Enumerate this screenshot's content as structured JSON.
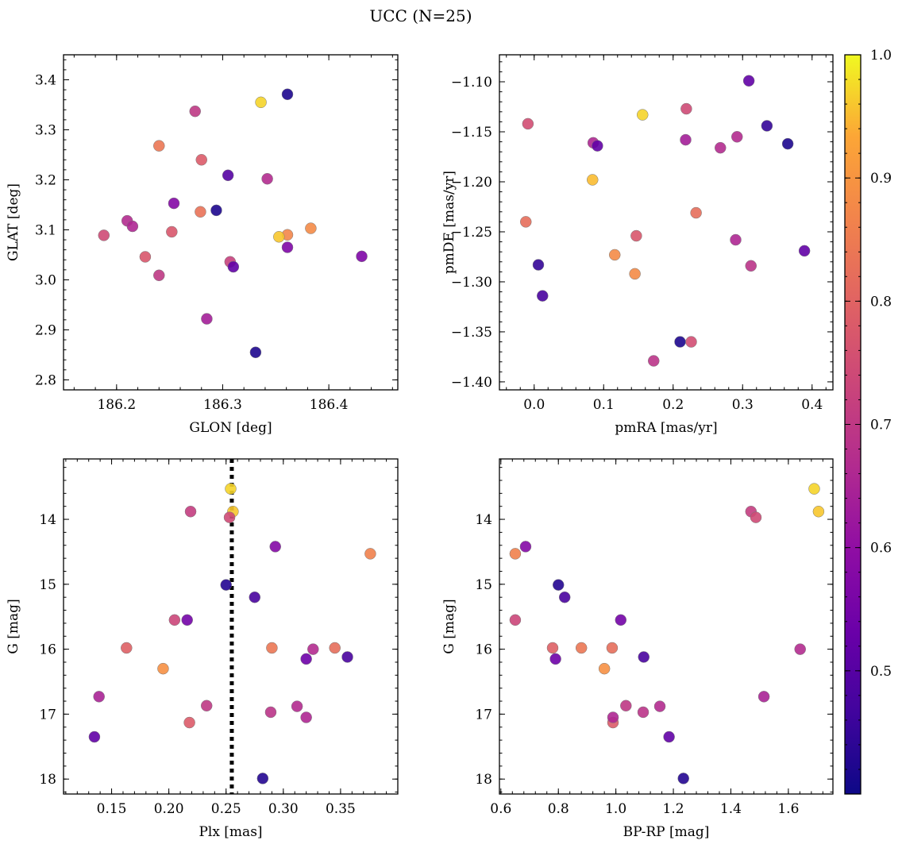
{
  "figure_title": "UCC (N=25)",
  "colorbar": {
    "range": [
      0.4,
      1.0
    ],
    "ticks": [
      0.5,
      0.6,
      0.7,
      0.8,
      0.9,
      1.0
    ],
    "tick_labels": [
      "0.5",
      "0.6",
      "0.7",
      "0.8",
      "0.9",
      "1.0"
    ],
    "colormap": "plasma"
  },
  "chart_data": [
    {
      "type": "scatter",
      "xlabel": "GLON [deg]",
      "ylabel": "GLAT [deg]",
      "xlim": [
        186.15,
        186.465
      ],
      "ylim": [
        2.78,
        3.45
      ],
      "xticks": [
        186.2,
        186.3,
        186.4
      ],
      "xtick_labels": [
        "186.2",
        "186.3",
        "186.4"
      ],
      "yticks": [
        2.8,
        2.9,
        3.0,
        3.1,
        3.2,
        3.3,
        3.4
      ],
      "ytick_labels": [
        "2.8",
        "2.9",
        "3.0",
        "3.1",
        "3.2",
        "3.3",
        "3.4"
      ],
      "points": [
        {
          "x": 186.336,
          "y": 3.355,
          "c": 0.97
        },
        {
          "x": 186.361,
          "y": 3.371,
          "c": 0.42
        },
        {
          "x": 186.274,
          "y": 3.337,
          "c": 0.7
        },
        {
          "x": 186.24,
          "y": 3.268,
          "c": 0.84
        },
        {
          "x": 186.28,
          "y": 3.24,
          "c": 0.78
        },
        {
          "x": 186.305,
          "y": 3.209,
          "c": 0.5
        },
        {
          "x": 186.342,
          "y": 3.202,
          "c": 0.67
        },
        {
          "x": 186.254,
          "y": 3.153,
          "c": 0.58
        },
        {
          "x": 186.294,
          "y": 3.139,
          "c": 0.42
        },
        {
          "x": 186.279,
          "y": 3.136,
          "c": 0.83
        },
        {
          "x": 186.21,
          "y": 3.118,
          "c": 0.67
        },
        {
          "x": 186.215,
          "y": 3.107,
          "c": 0.66
        },
        {
          "x": 186.383,
          "y": 3.103,
          "c": 0.88
        },
        {
          "x": 186.252,
          "y": 3.096,
          "c": 0.77
        },
        {
          "x": 186.361,
          "y": 3.09,
          "c": 0.87
        },
        {
          "x": 186.188,
          "y": 3.089,
          "c": 0.74
        },
        {
          "x": 186.353,
          "y": 3.086,
          "c": 0.96
        },
        {
          "x": 186.361,
          "y": 3.065,
          "c": 0.57
        },
        {
          "x": 186.431,
          "y": 3.047,
          "c": 0.57
        },
        {
          "x": 186.227,
          "y": 3.046,
          "c": 0.77
        },
        {
          "x": 186.307,
          "y": 3.036,
          "c": 0.72
        },
        {
          "x": 186.31,
          "y": 3.026,
          "c": 0.52
        },
        {
          "x": 186.24,
          "y": 3.009,
          "c": 0.7
        },
        {
          "x": 186.285,
          "y": 2.922,
          "c": 0.64
        },
        {
          "x": 186.331,
          "y": 2.855,
          "c": 0.42
        }
      ]
    },
    {
      "type": "scatter",
      "xlabel": "pmRA [mas/yr]",
      "ylabel": "pmDE [mas/yr]",
      "xlim": [
        -0.05,
        0.43
      ],
      "ylim": [
        -1.408,
        -1.073
      ],
      "xticks": [
        0.0,
        0.1,
        0.2,
        0.3,
        0.4
      ],
      "xtick_labels": [
        "0.0",
        "0.1",
        "0.2",
        "0.3",
        "0.4"
      ],
      "yticks": [
        -1.4,
        -1.35,
        -1.3,
        -1.25,
        -1.2,
        -1.15,
        -1.1
      ],
      "ytick_labels": [
        "−1.40",
        "−1.35",
        "−1.30",
        "−1.25",
        "−1.20",
        "−1.15",
        "−1.10"
      ],
      "points": [
        {
          "x": 0.309,
          "y": -1.099,
          "c": 0.52
        },
        {
          "x": 0.219,
          "y": -1.127,
          "c": 0.74
        },
        {
          "x": 0.156,
          "y": -1.133,
          "c": 0.97
        },
        {
          "x": -0.009,
          "y": -1.142,
          "c": 0.75
        },
        {
          "x": 0.335,
          "y": -1.144,
          "c": 0.45
        },
        {
          "x": 0.292,
          "y": -1.155,
          "c": 0.67
        },
        {
          "x": 0.218,
          "y": -1.158,
          "c": 0.64
        },
        {
          "x": 0.085,
          "y": -1.161,
          "c": 0.66
        },
        {
          "x": 0.365,
          "y": -1.162,
          "c": 0.42
        },
        {
          "x": 0.091,
          "y": -1.164,
          "c": 0.52
        },
        {
          "x": 0.268,
          "y": -1.166,
          "c": 0.67
        },
        {
          "x": 0.084,
          "y": -1.198,
          "c": 0.95
        },
        {
          "x": 0.233,
          "y": -1.231,
          "c": 0.82
        },
        {
          "x": -0.012,
          "y": -1.24,
          "c": 0.82
        },
        {
          "x": 0.147,
          "y": -1.254,
          "c": 0.77
        },
        {
          "x": 0.29,
          "y": -1.258,
          "c": 0.66
        },
        {
          "x": 0.389,
          "y": -1.269,
          "c": 0.52
        },
        {
          "x": 0.116,
          "y": -1.273,
          "c": 0.88
        },
        {
          "x": 0.006,
          "y": -1.283,
          "c": 0.45
        },
        {
          "x": 0.312,
          "y": -1.284,
          "c": 0.69
        },
        {
          "x": 0.145,
          "y": -1.292,
          "c": 0.88
        },
        {
          "x": 0.012,
          "y": -1.314,
          "c": 0.48
        },
        {
          "x": 0.21,
          "y": -1.36,
          "c": 0.42
        },
        {
          "x": 0.226,
          "y": -1.36,
          "c": 0.75
        },
        {
          "x": 0.172,
          "y": -1.379,
          "c": 0.69
        }
      ]
    },
    {
      "type": "scatter",
      "xlabel": "Plx [mas]",
      "ylabel": "G [mag]",
      "xlim": [
        0.108,
        0.4
      ],
      "ylim": [
        18.23,
        13.07
      ],
      "xticks": [
        0.15,
        0.2,
        0.25,
        0.3,
        0.35
      ],
      "xtick_labels": [
        "0.15",
        "0.20",
        "0.25",
        "0.30",
        "0.35"
      ],
      "yticks": [
        14,
        15,
        16,
        17,
        18
      ],
      "ytick_labels": [
        "14",
        "15",
        "16",
        "17",
        "18"
      ],
      "reference_line_x": 0.255,
      "points": [
        {
          "x": 0.254,
          "y": 13.53,
          "c": 0.97
        },
        {
          "x": 0.256,
          "y": 13.88,
          "c": 0.96
        },
        {
          "x": 0.219,
          "y": 13.88,
          "c": 0.71
        },
        {
          "x": 0.253,
          "y": 13.97,
          "c": 0.74
        },
        {
          "x": 0.293,
          "y": 14.42,
          "c": 0.58
        },
        {
          "x": 0.376,
          "y": 14.53,
          "c": 0.86
        },
        {
          "x": 0.25,
          "y": 15.01,
          "c": 0.43
        },
        {
          "x": 0.275,
          "y": 15.2,
          "c": 0.48
        },
        {
          "x": 0.205,
          "y": 15.55,
          "c": 0.73
        },
        {
          "x": 0.216,
          "y": 15.55,
          "c": 0.55
        },
        {
          "x": 0.163,
          "y": 15.98,
          "c": 0.79
        },
        {
          "x": 0.29,
          "y": 15.98,
          "c": 0.84
        },
        {
          "x": 0.345,
          "y": 15.98,
          "c": 0.82
        },
        {
          "x": 0.326,
          "y": 16.0,
          "c": 0.67
        },
        {
          "x": 0.32,
          "y": 16.15,
          "c": 0.54
        },
        {
          "x": 0.356,
          "y": 16.12,
          "c": 0.48
        },
        {
          "x": 0.195,
          "y": 16.3,
          "c": 0.89
        },
        {
          "x": 0.139,
          "y": 16.73,
          "c": 0.65
        },
        {
          "x": 0.233,
          "y": 16.87,
          "c": 0.7
        },
        {
          "x": 0.312,
          "y": 16.88,
          "c": 0.67
        },
        {
          "x": 0.289,
          "y": 16.97,
          "c": 0.69
        },
        {
          "x": 0.218,
          "y": 17.13,
          "c": 0.78
        },
        {
          "x": 0.32,
          "y": 17.05,
          "c": 0.66
        },
        {
          "x": 0.135,
          "y": 17.35,
          "c": 0.52
        },
        {
          "x": 0.282,
          "y": 17.99,
          "c": 0.43
        }
      ]
    },
    {
      "type": "scatter",
      "xlabel": "BP-RP [mag]",
      "ylabel": "G [mag]",
      "xlim": [
        0.595,
        1.755
      ],
      "ylim": [
        18.23,
        13.07
      ],
      "xticks": [
        0.6,
        0.8,
        1.0,
        1.2,
        1.4,
        1.6
      ],
      "xtick_labels": [
        "0.6",
        "0.8",
        "1.0",
        "1.2",
        "1.4",
        "1.6"
      ],
      "yticks": [
        14,
        15,
        16,
        17,
        18
      ],
      "ytick_labels": [
        "14",
        "15",
        "16",
        "17",
        "18"
      ],
      "points": [
        {
          "x": 1.69,
          "y": 13.53,
          "c": 0.97
        },
        {
          "x": 1.705,
          "y": 13.88,
          "c": 0.96
        },
        {
          "x": 1.47,
          "y": 13.88,
          "c": 0.71
        },
        {
          "x": 1.487,
          "y": 13.97,
          "c": 0.74
        },
        {
          "x": 0.686,
          "y": 14.42,
          "c": 0.58
        },
        {
          "x": 0.65,
          "y": 14.53,
          "c": 0.86
        },
        {
          "x": 0.8,
          "y": 15.01,
          "c": 0.43
        },
        {
          "x": 0.822,
          "y": 15.2,
          "c": 0.48
        },
        {
          "x": 0.65,
          "y": 15.55,
          "c": 0.73
        },
        {
          "x": 1.017,
          "y": 15.55,
          "c": 0.55
        },
        {
          "x": 0.78,
          "y": 15.98,
          "c": 0.79
        },
        {
          "x": 0.88,
          "y": 15.98,
          "c": 0.84
        },
        {
          "x": 0.987,
          "y": 15.98,
          "c": 0.82
        },
        {
          "x": 1.641,
          "y": 16.0,
          "c": 0.67
        },
        {
          "x": 0.79,
          "y": 16.15,
          "c": 0.54
        },
        {
          "x": 1.097,
          "y": 16.12,
          "c": 0.48
        },
        {
          "x": 0.96,
          "y": 16.3,
          "c": 0.89
        },
        {
          "x": 1.515,
          "y": 16.73,
          "c": 0.65
        },
        {
          "x": 1.035,
          "y": 16.87,
          "c": 0.7
        },
        {
          "x": 1.153,
          "y": 16.88,
          "c": 0.67
        },
        {
          "x": 1.095,
          "y": 16.97,
          "c": 0.69
        },
        {
          "x": 0.99,
          "y": 17.13,
          "c": 0.78
        },
        {
          "x": 0.99,
          "y": 17.05,
          "c": 0.66
        },
        {
          "x": 1.185,
          "y": 17.35,
          "c": 0.52
        },
        {
          "x": 1.235,
          "y": 17.99,
          "c": 0.43
        }
      ]
    }
  ]
}
